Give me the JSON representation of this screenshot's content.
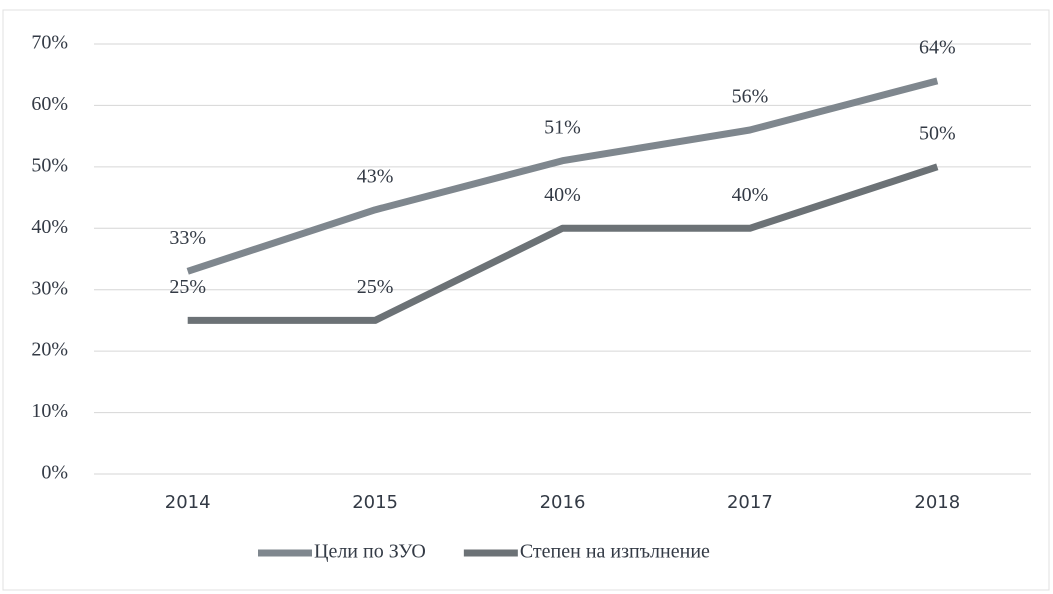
{
  "chart_data": {
    "type": "line",
    "categories": [
      "2014",
      "2015",
      "2016",
      "2017",
      "2018"
    ],
    "series": [
      {
        "name": "Цели по ЗУО",
        "color": "#7f878e",
        "values": [
          33,
          43,
          51,
          56,
          64
        ],
        "value_labels": [
          "33%",
          "43%",
          "51%",
          "56%",
          "64%"
        ]
      },
      {
        "name": "Степен на изпълнение",
        "color": "#6c7276",
        "values": [
          25,
          25,
          40,
          40,
          50
        ],
        "value_labels": [
          "25%",
          "25%",
          "40%",
          "40%",
          "50%"
        ]
      }
    ],
    "ylim": [
      0,
      70
    ],
    "yticks": [
      {
        "value": 0,
        "label": "0%"
      },
      {
        "value": 10,
        "label": "10%"
      },
      {
        "value": 20,
        "label": "20%"
      },
      {
        "value": 30,
        "label": "30%"
      },
      {
        "value": 40,
        "label": "40%"
      },
      {
        "value": 50,
        "label": "50%"
      },
      {
        "value": 60,
        "label": "60%"
      },
      {
        "value": 70,
        "label": "70%"
      }
    ],
    "grid": true,
    "legend": "bottom"
  }
}
